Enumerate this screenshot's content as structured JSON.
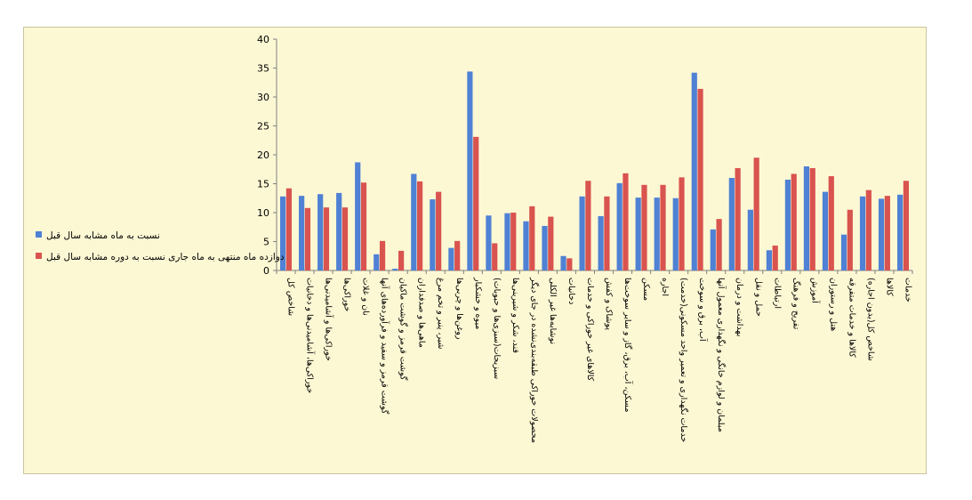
{
  "chart_data": {
    "type": "bar",
    "title": "",
    "xlabel": "",
    "ylabel": "",
    "ylim": [
      0,
      40
    ],
    "yticks": [
      0,
      5,
      10,
      15,
      20,
      25,
      30,
      35,
      40
    ],
    "grid": false,
    "legend_position": "left",
    "categories": [
      "شاخص کل",
      "خوراکی‌ها، آشامیدنی‌ها و دخانیات",
      "خوراکی‌ها و آشامیدنی‌ها",
      "خوراکی‌ها",
      "نان و غلات",
      "گوشت قرمز و سفید و فرآورده‌های آنها",
      "گوشت قرمز و گوشت ماکیان",
      "ماهی‌ها و صدفداران",
      "شیر، پنیر و تخم مرغ",
      "روغن‌ها و چربی‌ها",
      "میوه و خشکبار",
      "سبزیجات(سبزی‌ها و حبوبات)",
      "قند، شکر و شیرینی‌ها",
      "محصولات خوراکی طبقه‌بندی‌نشده در جای دیگر",
      "نوشابه‌ها غیر الکلی",
      "دخانیات",
      "کالاهای غیر خوراکی و خدمات",
      "پوشاک و کفش",
      "مسکن، آب، برق، گاز و سایر سوخت‌ها",
      "مسکن",
      "اجاره",
      "خدمات نگهداری و تعمیر واحد مسکونی(خدمت)",
      "آب، برق و سوخت",
      "مبلمان و لوازم خانگی و نگهداری معمول آنها",
      "بهداشت و درمان",
      "حمل و نقل",
      "ارتباطات",
      "تفریح و فرهنگ",
      "آموزش",
      "هتل و رستوران",
      "کالاها و خدمات متفرقه",
      "شاخص کل(بدون اجاره)",
      "کالاها",
      "خدمات"
    ],
    "series": [
      {
        "name": "نسبت به ماه مشابه سال قبل",
        "color": "#4f81d4",
        "values": [
          12.8,
          12.9,
          13.2,
          13.4,
          18.7,
          2.8,
          0.3,
          16.7,
          12.3,
          3.9,
          34.4,
          9.5,
          9.9,
          8.5,
          7.7,
          2.5,
          12.8,
          9.4,
          15.1,
          12.6,
          12.6,
          12.5,
          34.2,
          7.1,
          16.0,
          10.5,
          3.5,
          15.7,
          18.0,
          13.6,
          6.2,
          12.8,
          12.4,
          13.1
        ]
      },
      {
        "name": "دوازده ماه منتهی به ماه جاری نسبت به دوره مشابه سال قبل",
        "color": "#d9534f",
        "values": [
          14.2,
          10.8,
          10.9,
          10.9,
          15.2,
          5.1,
          3.4,
          15.4,
          13.6,
          5.1,
          23.1,
          4.7,
          10.0,
          11.1,
          9.3,
          2.1,
          15.5,
          12.8,
          16.8,
          14.8,
          14.8,
          16.1,
          31.4,
          8.9,
          17.7,
          19.5,
          4.3,
          16.7,
          17.7,
          16.3,
          10.5,
          13.9,
          12.9,
          15.5
        ]
      }
    ]
  }
}
